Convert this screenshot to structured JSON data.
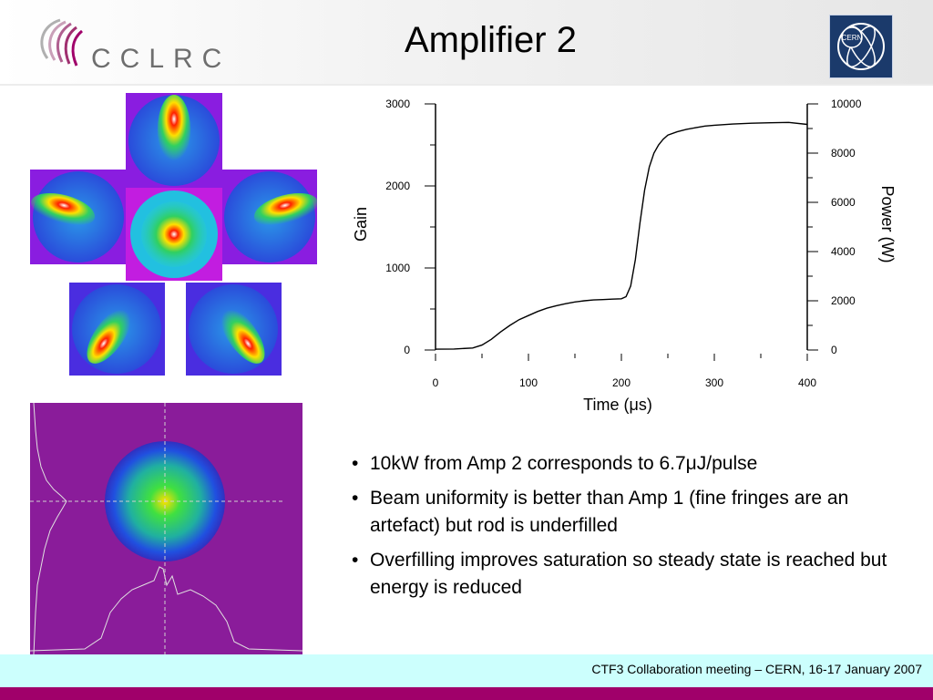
{
  "header": {
    "title": "Amplifier 2",
    "logo_text": "CCLRC",
    "cern_logo_text": "CERN"
  },
  "chart_data": {
    "type": "line",
    "xlabel": "Time (μs)",
    "ylabel": "Gain",
    "y2label": "Power (W)",
    "xlim": [
      0,
      400
    ],
    "ylim": [
      0,
      3000
    ],
    "y2lim": [
      0,
      10000
    ],
    "x_ticks": [
      "0",
      "100",
      "200",
      "300",
      "400"
    ],
    "y_ticks": [
      "0",
      "1000",
      "2000",
      "3000"
    ],
    "y2_ticks": [
      "0",
      "2000",
      "4000",
      "6000",
      "8000",
      "10000"
    ],
    "series": [
      {
        "x": [
          0,
          20,
          40,
          50,
          60,
          70,
          80,
          90,
          100,
          110,
          120,
          130,
          140,
          150,
          160,
          170,
          180,
          190,
          200,
          205,
          210,
          215,
          220,
          225,
          230,
          235,
          240,
          245,
          250,
          260,
          270,
          280,
          290,
          300,
          320,
          340,
          360,
          380,
          400
        ],
        "y": [
          10,
          12,
          25,
          60,
          130,
          220,
          300,
          370,
          420,
          470,
          510,
          540,
          565,
          585,
          600,
          610,
          615,
          620,
          625,
          650,
          780,
          1100,
          1550,
          1950,
          2230,
          2400,
          2500,
          2570,
          2620,
          2660,
          2690,
          2710,
          2730,
          2740,
          2755,
          2765,
          2770,
          2775,
          2750
        ]
      }
    ]
  },
  "bullets": [
    "10kW from Amp 2 corresponds to 6.7μJ/pulse",
    "Beam uniformity is better than Amp 1 (fine fringes are an artefact) but rod is underfilled",
    "Overfilling improves saturation so steady state is reached but energy is reduced"
  ],
  "bullet_marker": "•",
  "footer": {
    "text": "CTF3 Collaboration meeting – CERN, 16-17 January 2007"
  },
  "colors": {
    "accent_bar": "#a0006a",
    "footer_bg": "#ccfffd",
    "cern_logo_bg": "#1b3a6b"
  }
}
